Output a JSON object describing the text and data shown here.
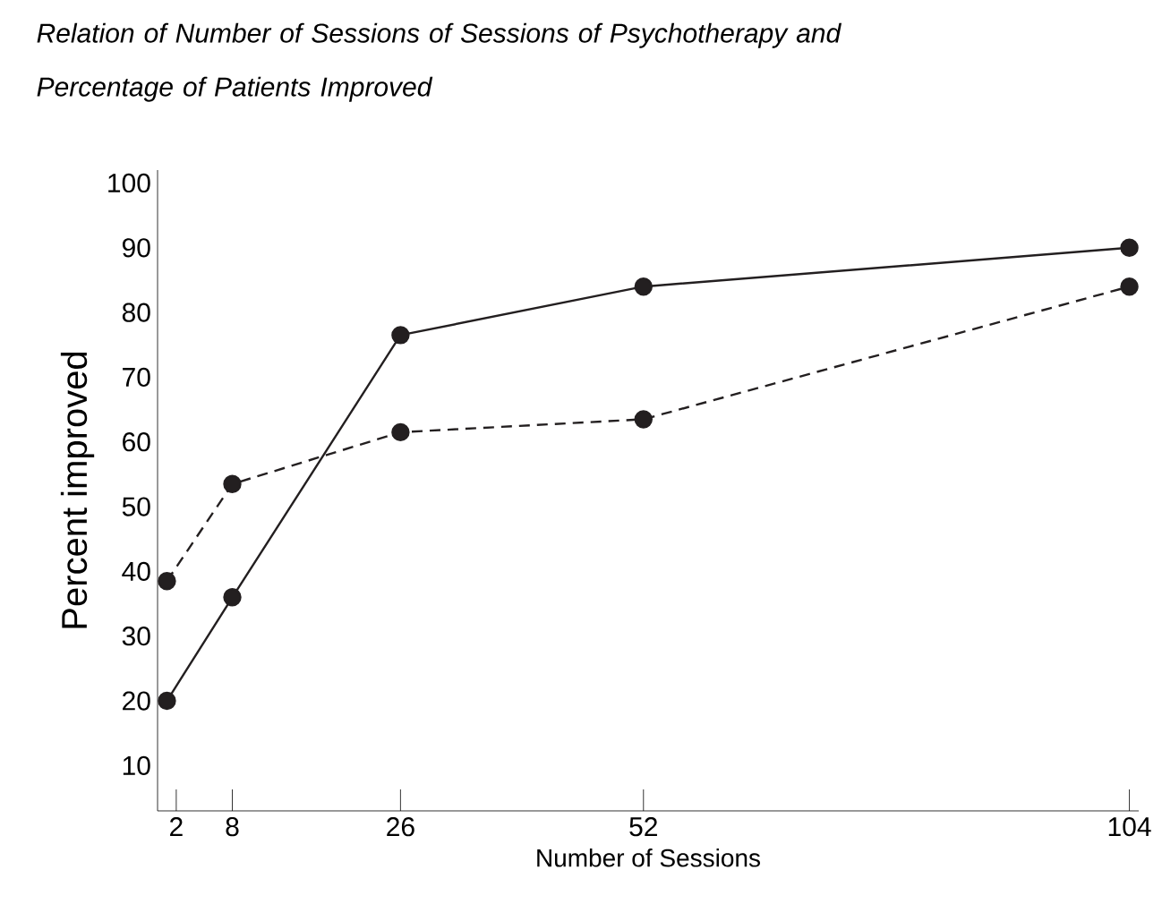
{
  "chart_data": {
    "type": "line",
    "title": "Relation of Number of Sessions of Sessions of Psychotherapy and Percentage of Patients Improved",
    "xlabel": "Number of Sessions",
    "ylabel": "Percent improved",
    "x": [
      1,
      8,
      26,
      52,
      104
    ],
    "series": [
      {
        "color": "#231f20",
        "line_style": "solid",
        "values": [
          20,
          36,
          76.5,
          84,
          90
        ]
      },
      {
        "color": "#231f20",
        "line_style": "dashed",
        "values": [
          38.5,
          53.5,
          61.5,
          63.5,
          84
        ]
      }
    ],
    "xlim": [
      0,
      105
    ],
    "ylim": [
      3,
      102
    ],
    "xticks": [
      2,
      8,
      26,
      52,
      104
    ],
    "yticks": [
      10,
      20,
      30,
      40,
      50,
      60,
      70,
      80,
      90,
      100
    ],
    "marker": "circle",
    "grid": false
  }
}
